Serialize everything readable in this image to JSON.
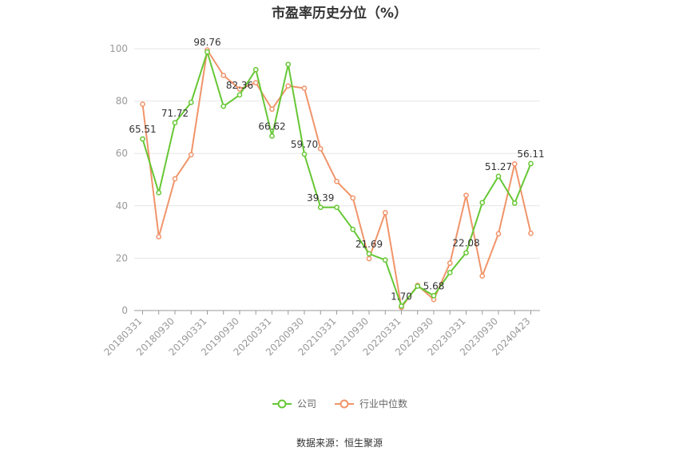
{
  "chart_data": {
    "type": "line",
    "title": "市盈率历史分位（%）",
    "xlabel": "",
    "ylabel": "",
    "ylim": [
      0,
      100
    ],
    "yticks": [
      0,
      20,
      40,
      60,
      80,
      100
    ],
    "grid": true,
    "legend_position": "bottom",
    "x_tick_labels": [
      "20180331",
      "20180930",
      "20190331",
      "20190930",
      "20200331",
      "20200930",
      "20210331",
      "20210930",
      "20220331",
      "20220930",
      "20230331",
      "20230930",
      "20240423"
    ],
    "series": [
      {
        "name": "公司",
        "color": "#66c734",
        "values": [
          65.51,
          45.0,
          71.72,
          79.5,
          98.76,
          78.0,
          82.36,
          92.0,
          66.62,
          94.0,
          59.7,
          39.39,
          39.39,
          31.0,
          21.69,
          19.3,
          1.7,
          9.3,
          5.68,
          14.5,
          22.08,
          41.2,
          51.27,
          41.0,
          56.11
        ],
        "labels": [
          "65.51",
          "",
          "71.72",
          "",
          "98.76",
          "",
          "82.36",
          "",
          "66.62",
          "",
          "59.70",
          "39.39",
          "",
          "",
          "21.69",
          "",
          "1.70",
          "",
          "5.68",
          "",
          "22.08",
          "",
          "51.27",
          "",
          "56.11"
        ]
      },
      {
        "name": "行业中位数",
        "color": "#f0946a",
        "values": [
          78.8,
          28.2,
          50.3,
          59.5,
          99.5,
          89.8,
          84.6,
          87.0,
          76.9,
          85.8,
          84.9,
          61.8,
          49.3,
          43.0,
          19.8,
          37.4,
          1.2,
          9.6,
          4.2,
          18.1,
          44.0,
          13.2,
          29.3,
          56.0,
          29.5
        ],
        "labels": []
      }
    ]
  },
  "source_note": "数据来源：恒生聚源"
}
